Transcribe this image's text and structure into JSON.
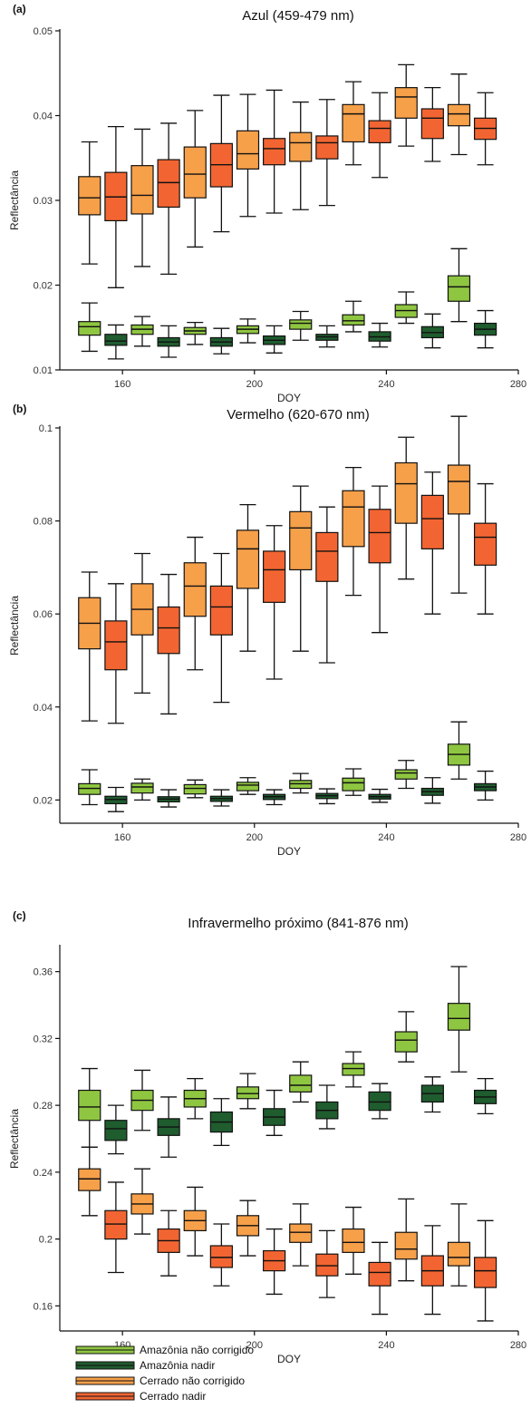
{
  "chart_data": [
    {
      "type": "boxplot",
      "panel_letter": "(a)",
      "title": "Azul (459-479 nm)",
      "xlabel": "DOY",
      "ylabel": "Reflectância",
      "xlim": [
        141,
        280
      ],
      "ylim": [
        0.01,
        0.05
      ],
      "xticks": [
        "160",
        "200",
        "240",
        "280"
      ],
      "yticks": [
        "0.01",
        "0.02",
        "0.03",
        "0.04",
        "0.05"
      ],
      "series": [
        {
          "name": "Amazônia não corrigido",
          "color": "#8fc641",
          "x": [
            150,
            166,
            182,
            198,
            214,
            230,
            246,
            262
          ],
          "whisker_low": [
            0.0122,
            0.0128,
            0.013,
            0.0132,
            0.0135,
            0.0145,
            0.0155,
            0.0157
          ],
          "q1": [
            0.0141,
            0.0142,
            0.0142,
            0.0143,
            0.0148,
            0.0153,
            0.0162,
            0.0181
          ],
          "median": [
            0.0151,
            0.0148,
            0.0146,
            0.0148,
            0.0155,
            0.0158,
            0.017,
            0.0198
          ],
          "q3": [
            0.0157,
            0.0153,
            0.015,
            0.0152,
            0.0159,
            0.0165,
            0.0177,
            0.0211
          ],
          "whisker_high": [
            0.0179,
            0.0163,
            0.0156,
            0.016,
            0.0169,
            0.0181,
            0.0192,
            0.0243
          ]
        },
        {
          "name": "Amazônia nadir",
          "color": "#1f5c2e",
          "x": [
            158,
            174,
            190,
            206,
            222,
            238,
            254,
            270
          ],
          "whisker_low": [
            0.0113,
            0.0115,
            0.0119,
            0.012,
            0.0127,
            0.0127,
            0.0126,
            0.0126
          ],
          "q1": [
            0.0129,
            0.0128,
            0.0128,
            0.013,
            0.0135,
            0.0134,
            0.0138,
            0.0141
          ],
          "median": [
            0.0134,
            0.0133,
            0.0133,
            0.0135,
            0.0139,
            0.0139,
            0.0144,
            0.0148
          ],
          "q3": [
            0.0142,
            0.0138,
            0.0138,
            0.014,
            0.0142,
            0.0145,
            0.0151,
            0.0155
          ],
          "whisker_high": [
            0.0153,
            0.0152,
            0.0149,
            0.0152,
            0.0152,
            0.0155,
            0.0166,
            0.017
          ]
        },
        {
          "name": "Cerrado não corrigido",
          "color": "#f6a04a",
          "x": [
            150,
            166,
            182,
            198,
            214,
            230,
            246,
            262
          ],
          "whisker_low": [
            0.0225,
            0.0222,
            0.0245,
            0.0281,
            0.0289,
            0.0342,
            0.0364,
            0.0354
          ],
          "q1": [
            0.0283,
            0.0284,
            0.0303,
            0.0337,
            0.0346,
            0.0369,
            0.0397,
            0.0388
          ],
          "median": [
            0.0303,
            0.0306,
            0.0331,
            0.0355,
            0.0368,
            0.0402,
            0.0422,
            0.0402
          ],
          "q3": [
            0.0328,
            0.0341,
            0.0363,
            0.0382,
            0.038,
            0.0413,
            0.0433,
            0.0413
          ],
          "whisker_high": [
            0.0369,
            0.0384,
            0.0406,
            0.0425,
            0.0416,
            0.044,
            0.046,
            0.0449
          ]
        },
        {
          "name": "Cerrado nadir",
          "color": "#f26532",
          "x": [
            158,
            174,
            190,
            206,
            222,
            238,
            254,
            270
          ],
          "whisker_low": [
            0.0197,
            0.0213,
            0.0263,
            0.0285,
            0.0294,
            0.0327,
            0.0346,
            0.0342
          ],
          "q1": [
            0.0276,
            0.0292,
            0.0316,
            0.0342,
            0.0349,
            0.0368,
            0.0373,
            0.0372
          ],
          "median": [
            0.0304,
            0.0321,
            0.0342,
            0.0361,
            0.0368,
            0.0385,
            0.0397,
            0.0385
          ],
          "q3": [
            0.0333,
            0.0348,
            0.0367,
            0.0373,
            0.0376,
            0.0394,
            0.0408,
            0.0397
          ],
          "whisker_high": [
            0.0387,
            0.0391,
            0.0424,
            0.043,
            0.0419,
            0.0427,
            0.0433,
            0.0427
          ]
        }
      ]
    },
    {
      "type": "boxplot",
      "panel_letter": "(b)",
      "title": "Vermelho (620-670 nm)",
      "xlabel": "DOY",
      "ylabel": "Reflectância",
      "xlim": [
        141,
        280
      ],
      "ylim": [
        0.015,
        0.1
      ],
      "xticks": [
        "160",
        "200",
        "240",
        "280"
      ],
      "yticks": [
        "0.02",
        "0.04",
        "0.06",
        "0.08",
        "0.1"
      ],
      "series": [
        {
          "name": "Amazônia não corrigido",
          "color": "#8fc641",
          "x": [
            150,
            166,
            182,
            198,
            214,
            230,
            246,
            262
          ],
          "whisker_low": [
            0.019,
            0.02,
            0.0205,
            0.0212,
            0.0215,
            0.021,
            0.0225,
            0.0245
          ],
          "q1": [
            0.0212,
            0.0215,
            0.0213,
            0.022,
            0.0225,
            0.022,
            0.0245,
            0.0275
          ],
          "median": [
            0.0225,
            0.0228,
            0.0225,
            0.0232,
            0.0235,
            0.0237,
            0.0258,
            0.0298
          ],
          "q3": [
            0.0235,
            0.0236,
            0.0233,
            0.0238,
            0.0242,
            0.0247,
            0.0265,
            0.032
          ],
          "whisker_high": [
            0.0265,
            0.0245,
            0.0243,
            0.0248,
            0.0257,
            0.0267,
            0.0285,
            0.0368
          ]
        },
        {
          "name": "Amazônia nadir",
          "color": "#1f5c2e",
          "x": [
            158,
            174,
            190,
            206,
            222,
            238,
            254,
            270
          ],
          "whisker_low": [
            0.0175,
            0.0185,
            0.0187,
            0.019,
            0.0192,
            0.0195,
            0.0193,
            0.02
          ],
          "q1": [
            0.0192,
            0.0196,
            0.0197,
            0.0201,
            0.0203,
            0.0202,
            0.021,
            0.022
          ],
          "median": [
            0.0201,
            0.0202,
            0.0203,
            0.0207,
            0.0209,
            0.0207,
            0.0218,
            0.0228
          ],
          "q3": [
            0.0208,
            0.0207,
            0.0208,
            0.0212,
            0.0214,
            0.0212,
            0.0225,
            0.0235
          ],
          "whisker_high": [
            0.0227,
            0.0222,
            0.0222,
            0.0222,
            0.0224,
            0.0223,
            0.0248,
            0.0262
          ]
        },
        {
          "name": "Cerrado não corrigido",
          "color": "#f6a04a",
          "x": [
            150,
            166,
            182,
            198,
            214,
            230,
            246,
            262
          ],
          "whisker_low": [
            0.037,
            0.043,
            0.048,
            0.052,
            0.052,
            0.064,
            0.0675,
            0.0645
          ],
          "q1": [
            0.0525,
            0.0555,
            0.0595,
            0.0655,
            0.0695,
            0.0745,
            0.0795,
            0.0815
          ],
          "median": [
            0.058,
            0.061,
            0.066,
            0.074,
            0.0785,
            0.083,
            0.088,
            0.0885
          ],
          "q3": [
            0.0635,
            0.0665,
            0.071,
            0.078,
            0.082,
            0.0865,
            0.0925,
            0.092
          ],
          "whisker_high": [
            0.069,
            0.073,
            0.0765,
            0.0835,
            0.0875,
            0.0915,
            0.098,
            0.1025
          ]
        },
        {
          "name": "Cerrado nadir",
          "color": "#f26532",
          "x": [
            158,
            174,
            190,
            206,
            222,
            238,
            254,
            270
          ],
          "whisker_low": [
            0.0365,
            0.0385,
            0.041,
            0.046,
            0.0495,
            0.056,
            0.06,
            0.06
          ],
          "q1": [
            0.048,
            0.0515,
            0.0555,
            0.0625,
            0.067,
            0.071,
            0.074,
            0.0705
          ],
          "median": [
            0.054,
            0.057,
            0.0615,
            0.0695,
            0.0735,
            0.0775,
            0.0805,
            0.0765
          ],
          "q3": [
            0.0585,
            0.0615,
            0.066,
            0.0735,
            0.0775,
            0.0825,
            0.0855,
            0.0795
          ],
          "whisker_high": [
            0.0665,
            0.0685,
            0.073,
            0.079,
            0.083,
            0.0875,
            0.0905,
            0.088
          ]
        }
      ]
    },
    {
      "type": "boxplot",
      "panel_letter": "(c)",
      "title": "Infravermelho próximo (841-876 nm)",
      "xlabel": "DOY",
      "ylabel": "Reflectância",
      "xlim": [
        141,
        280
      ],
      "ylim": [
        0.145,
        0.375
      ],
      "xticks": [
        "160",
        "200",
        "240",
        "280"
      ],
      "yticks": [
        "0.16",
        "0.2",
        "0.24",
        "0.28",
        "0.32",
        "0.36"
      ],
      "series": [
        {
          "name": "Amazônia não corrigido",
          "color": "#8fc641",
          "x": [
            150,
            166,
            182,
            198,
            214,
            230,
            246,
            262
          ],
          "whisker_low": [
            0.255,
            0.265,
            0.272,
            0.278,
            0.282,
            0.291,
            0.306,
            0.3
          ],
          "q1": [
            0.271,
            0.277,
            0.279,
            0.284,
            0.288,
            0.298,
            0.312,
            0.325
          ],
          "median": [
            0.279,
            0.283,
            0.284,
            0.287,
            0.292,
            0.302,
            0.319,
            0.332
          ],
          "q3": [
            0.289,
            0.289,
            0.289,
            0.291,
            0.298,
            0.305,
            0.324,
            0.341
          ],
          "whisker_high": [
            0.302,
            0.301,
            0.296,
            0.299,
            0.306,
            0.312,
            0.336,
            0.363
          ]
        },
        {
          "name": "Amazônia nadir",
          "color": "#1f5c2e",
          "x": [
            158,
            174,
            190,
            206,
            222,
            238,
            254,
            270
          ],
          "whisker_low": [
            0.251,
            0.249,
            0.256,
            0.262,
            0.266,
            0.272,
            0.276,
            0.275
          ],
          "q1": [
            0.259,
            0.262,
            0.264,
            0.268,
            0.272,
            0.277,
            0.282,
            0.281
          ],
          "median": [
            0.266,
            0.267,
            0.27,
            0.273,
            0.277,
            0.282,
            0.287,
            0.285
          ],
          "q3": [
            0.271,
            0.272,
            0.276,
            0.278,
            0.282,
            0.288,
            0.292,
            0.289
          ],
          "whisker_high": [
            0.28,
            0.285,
            0.284,
            0.289,
            0.292,
            0.293,
            0.297,
            0.296
          ]
        },
        {
          "name": "Cerrado não corrigido",
          "color": "#f6a04a",
          "x": [
            150,
            166,
            182,
            198,
            214,
            230,
            246,
            262
          ],
          "whisker_low": [
            0.214,
            0.203,
            0.19,
            0.19,
            0.184,
            0.179,
            0.175,
            0.172
          ],
          "q1": [
            0.229,
            0.215,
            0.205,
            0.202,
            0.198,
            0.192,
            0.188,
            0.184
          ],
          "median": [
            0.236,
            0.221,
            0.211,
            0.208,
            0.204,
            0.198,
            0.194,
            0.189
          ],
          "q3": [
            0.242,
            0.227,
            0.217,
            0.214,
            0.209,
            0.206,
            0.204,
            0.198
          ],
          "whisker_high": [
            0.255,
            0.242,
            0.231,
            0.223,
            0.221,
            0.219,
            0.224,
            0.221
          ]
        },
        {
          "name": "Cerrado nadir",
          "color": "#f26532",
          "x": [
            158,
            174,
            190,
            206,
            222,
            238,
            254,
            270
          ],
          "whisker_low": [
            0.18,
            0.178,
            0.172,
            0.167,
            0.165,
            0.155,
            0.155,
            0.151
          ],
          "q1": [
            0.2,
            0.192,
            0.183,
            0.181,
            0.178,
            0.172,
            0.172,
            0.171
          ],
          "median": [
            0.209,
            0.199,
            0.189,
            0.187,
            0.184,
            0.18,
            0.181,
            0.181
          ],
          "q3": [
            0.217,
            0.206,
            0.196,
            0.193,
            0.191,
            0.186,
            0.19,
            0.189
          ],
          "whisker_high": [
            0.234,
            0.217,
            0.209,
            0.206,
            0.205,
            0.198,
            0.208,
            0.211
          ]
        }
      ]
    }
  ],
  "legend": [
    {
      "label": "Amazônia não corrigido",
      "color": "#8fc641"
    },
    {
      "label": "Amazônia nadir",
      "color": "#1f5c2e"
    },
    {
      "label": "Cerrado não corrigido",
      "color": "#f6a04a"
    },
    {
      "label": "Cerrado nadir",
      "color": "#f26532"
    }
  ]
}
